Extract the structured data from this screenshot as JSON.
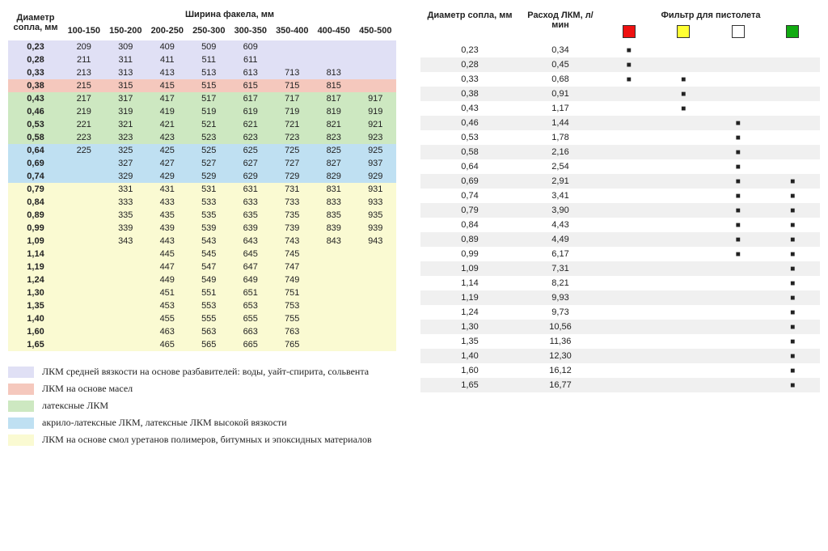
{
  "left": {
    "h_diam": "Диаметр сопла, мм",
    "h_width": "Ширина факела, мм",
    "widths": [
      "100-150",
      "150-200",
      "200-250",
      "250-300",
      "300-350",
      "350-400",
      "400-450",
      "450-500"
    ],
    "rows": [
      {
        "d": "0,23",
        "cls": "lav",
        "v": [
          "209",
          "309",
          "409",
          "509",
          "609",
          "",
          "",
          ""
        ]
      },
      {
        "d": "0,28",
        "cls": "lav",
        "v": [
          "211",
          "311",
          "411",
          "511",
          "611",
          "",
          "",
          ""
        ]
      },
      {
        "d": "0,33",
        "cls": "lav",
        "v": [
          "213",
          "313",
          "413",
          "513",
          "613",
          "713",
          "813",
          ""
        ]
      },
      {
        "d": "0,38",
        "cls": "sal",
        "v": [
          "215",
          "315",
          "415",
          "515",
          "615",
          "715",
          "815",
          ""
        ]
      },
      {
        "d": "0,43",
        "cls": "grn",
        "v": [
          "217",
          "317",
          "417",
          "517",
          "617",
          "717",
          "817",
          "917"
        ]
      },
      {
        "d": "0,46",
        "cls": "grn",
        "v": [
          "219",
          "319",
          "419",
          "519",
          "619",
          "719",
          "819",
          "919"
        ]
      },
      {
        "d": "0,53",
        "cls": "grn",
        "v": [
          "221",
          "321",
          "421",
          "521",
          "621",
          "721",
          "821",
          "921"
        ]
      },
      {
        "d": "0,58",
        "cls": "grn",
        "v": [
          "223",
          "323",
          "423",
          "523",
          "623",
          "723",
          "823",
          "923"
        ]
      },
      {
        "d": "0,64",
        "cls": "blu",
        "v": [
          "225",
          "325",
          "425",
          "525",
          "625",
          "725",
          "825",
          "925"
        ]
      },
      {
        "d": "0,69",
        "cls": "blu",
        "v": [
          "",
          "327",
          "427",
          "527",
          "627",
          "727",
          "827",
          "937"
        ]
      },
      {
        "d": "0,74",
        "cls": "blu",
        "v": [
          "",
          "329",
          "429",
          "529",
          "629",
          "729",
          "829",
          "929"
        ]
      },
      {
        "d": "0,79",
        "cls": "yel",
        "v": [
          "",
          "331",
          "431",
          "531",
          "631",
          "731",
          "831",
          "931"
        ]
      },
      {
        "d": "0,84",
        "cls": "yel",
        "v": [
          "",
          "333",
          "433",
          "533",
          "633",
          "733",
          "833",
          "933"
        ]
      },
      {
        "d": "0,89",
        "cls": "yel",
        "v": [
          "",
          "335",
          "435",
          "535",
          "635",
          "735",
          "835",
          "935"
        ]
      },
      {
        "d": "0,99",
        "cls": "yel",
        "v": [
          "",
          "339",
          "439",
          "539",
          "639",
          "739",
          "839",
          "939"
        ]
      },
      {
        "d": "1,09",
        "cls": "yel",
        "v": [
          "",
          "343",
          "443",
          "543",
          "643",
          "743",
          "843",
          "943"
        ]
      },
      {
        "d": "1,14",
        "cls": "yel",
        "v": [
          "",
          "",
          "445",
          "545",
          "645",
          "745",
          "",
          ""
        ]
      },
      {
        "d": "1,19",
        "cls": "yel",
        "v": [
          "",
          "",
          "447",
          "547",
          "647",
          "747",
          "",
          ""
        ]
      },
      {
        "d": "1,24",
        "cls": "yel",
        "v": [
          "",
          "",
          "449",
          "549",
          "649",
          "749",
          "",
          ""
        ]
      },
      {
        "d": "1,30",
        "cls": "yel",
        "v": [
          "",
          "",
          "451",
          "551",
          "651",
          "751",
          "",
          ""
        ]
      },
      {
        "d": "1,35",
        "cls": "yel",
        "v": [
          "",
          "",
          "453",
          "553",
          "653",
          "753",
          "",
          ""
        ]
      },
      {
        "d": "1,40",
        "cls": "yel",
        "v": [
          "",
          "",
          "455",
          "555",
          "655",
          "755",
          "",
          ""
        ]
      },
      {
        "d": "1,60",
        "cls": "yel",
        "v": [
          "",
          "",
          "463",
          "563",
          "663",
          "763",
          "",
          ""
        ]
      },
      {
        "d": "1,65",
        "cls": "yel",
        "v": [
          "",
          "",
          "465",
          "565",
          "665",
          "765",
          "",
          ""
        ]
      }
    ]
  },
  "legend": [
    {
      "cls": "lav",
      "txt": "ЛКМ средней вязкости на основе разбавителей: воды, уайт-спирита, сольвента"
    },
    {
      "cls": "sal",
      "txt": "ЛКМ на основе масел"
    },
    {
      "cls": "grn",
      "txt": "латексные ЛКМ"
    },
    {
      "cls": "blu",
      "txt": "акрило-латексные ЛКМ, латексные ЛКМ высокой вязкости"
    },
    {
      "cls": "yel",
      "txt": "ЛКМ на основе смол уретанов полимеров, битумных и эпоксидных материалов"
    }
  ],
  "right": {
    "h_diam": "Диаметр сопла, мм",
    "h_flow": "Расход ЛКМ, л/мин",
    "h_filter": "Фильтр для пистолета",
    "filters": [
      "red",
      "yel",
      "wht",
      "grn"
    ],
    "rows": [
      {
        "d": "0,23",
        "f": "0,34",
        "m": [
          1,
          0,
          0,
          0
        ]
      },
      {
        "d": "0,28",
        "f": "0,45",
        "m": [
          1,
          0,
          0,
          0
        ]
      },
      {
        "d": "0,33",
        "f": "0,68",
        "m": [
          1,
          1,
          0,
          0
        ]
      },
      {
        "d": "0,38",
        "f": "0,91",
        "m": [
          0,
          1,
          0,
          0
        ]
      },
      {
        "d": "0,43",
        "f": "1,17",
        "m": [
          0,
          1,
          0,
          0
        ]
      },
      {
        "d": "0,46",
        "f": "1,44",
        "m": [
          0,
          0,
          1,
          0
        ]
      },
      {
        "d": "0,53",
        "f": "1,78",
        "m": [
          0,
          0,
          1,
          0
        ]
      },
      {
        "d": "0,58",
        "f": "2,16",
        "m": [
          0,
          0,
          1,
          0
        ]
      },
      {
        "d": "0,64",
        "f": "2,54",
        "m": [
          0,
          0,
          1,
          0
        ]
      },
      {
        "d": "0,69",
        "f": "2,91",
        "m": [
          0,
          0,
          1,
          1
        ]
      },
      {
        "d": "0,74",
        "f": "3,41",
        "m": [
          0,
          0,
          1,
          1
        ]
      },
      {
        "d": "0,79",
        "f": "3,90",
        "m": [
          0,
          0,
          1,
          1
        ]
      },
      {
        "d": "0,84",
        "f": "4,43",
        "m": [
          0,
          0,
          1,
          1
        ]
      },
      {
        "d": "0,89",
        "f": "4,49",
        "m": [
          0,
          0,
          1,
          1
        ]
      },
      {
        "d": "0,99",
        "f": "6,17",
        "m": [
          0,
          0,
          1,
          1
        ]
      },
      {
        "d": "1,09",
        "f": "7,31",
        "m": [
          0,
          0,
          0,
          1
        ]
      },
      {
        "d": "1,14",
        "f": "8,21",
        "m": [
          0,
          0,
          0,
          1
        ]
      },
      {
        "d": "1,19",
        "f": "9,93",
        "m": [
          0,
          0,
          0,
          1
        ]
      },
      {
        "d": "1,24",
        "f": "9,73",
        "m": [
          0,
          0,
          0,
          1
        ]
      },
      {
        "d": "1,30",
        "f": "10,56",
        "m": [
          0,
          0,
          0,
          1
        ]
      },
      {
        "d": "1,35",
        "f": "11,36",
        "m": [
          0,
          0,
          0,
          1
        ]
      },
      {
        "d": "1,40",
        "f": "12,30",
        "m": [
          0,
          0,
          0,
          1
        ]
      },
      {
        "d": "1,60",
        "f": "16,12",
        "m": [
          0,
          0,
          0,
          1
        ]
      },
      {
        "d": "1,65",
        "f": "16,77",
        "m": [
          0,
          0,
          0,
          1
        ]
      }
    ]
  }
}
